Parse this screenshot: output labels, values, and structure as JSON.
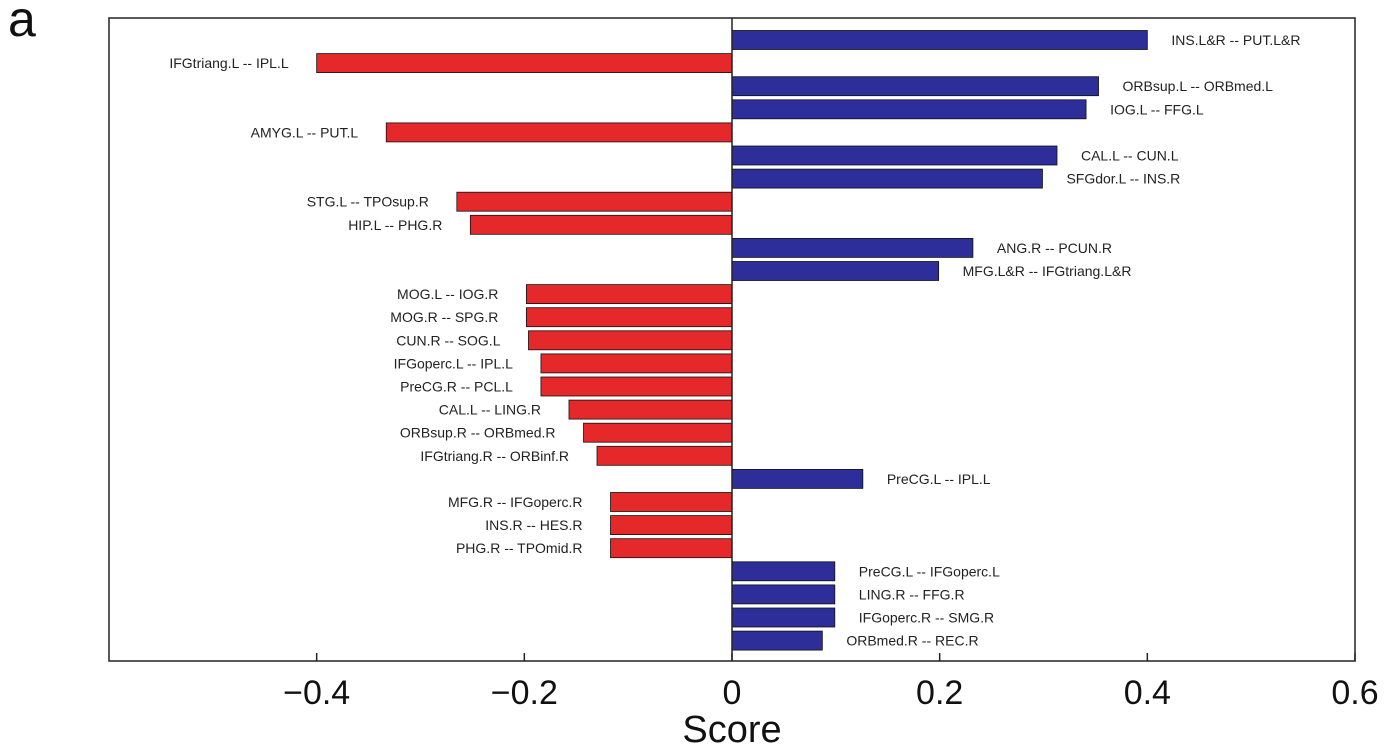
{
  "panel_label": "a",
  "colors": {
    "positive": "#2e2e9a",
    "negative": "#e5282a",
    "axis": "#222222"
  },
  "chart_data": {
    "type": "bar",
    "orientation": "horizontal",
    "xlabel": "Score",
    "xlim": [
      -0.6,
      0.6
    ],
    "xticks": [
      -0.4,
      -0.2,
      0,
      0.2,
      0.4,
      0.6
    ],
    "xtick_labels": [
      "−0.4",
      "−0.2",
      "0",
      "0.2",
      "0.4",
      "0.6"
    ],
    "grid": false,
    "rows": 27,
    "bars": [
      {
        "row": 0,
        "label": "INS.L&R -- PUT.L&R",
        "value": 0.4
      },
      {
        "row": 1,
        "label": "IFGtriang.L -- IPL.L",
        "value": -0.4
      },
      {
        "row": 2,
        "label": "ORBsup.L -- ORBmed.L",
        "value": 0.353
      },
      {
        "row": 3,
        "label": "IOG.L -- FFG.L",
        "value": 0.341
      },
      {
        "row": 4,
        "label": "AMYG.L -- PUT.L",
        "value": -0.333
      },
      {
        "row": 5,
        "label": "CAL.L -- CUN.L",
        "value": 0.313
      },
      {
        "row": 6,
        "label": "SFGdor.L -- INS.R",
        "value": 0.299
      },
      {
        "row": 7,
        "label": "STG.L -- TPOsup.R",
        "value": -0.265
      },
      {
        "row": 8,
        "label": "HIP.L -- PHG.R",
        "value": -0.252
      },
      {
        "row": 9,
        "label": "ANG.R -- PCUN.R",
        "value": 0.232
      },
      {
        "row": 10,
        "label": "MFG.L&R -- IFGtriang.L&R",
        "value": 0.199
      },
      {
        "row": 11,
        "label": "MOG.L -- IOG.R",
        "value": -0.198
      },
      {
        "row": 12,
        "label": "MOG.R -- SPG.R",
        "value": -0.198
      },
      {
        "row": 13,
        "label": "CUN.R -- SOG.L",
        "value": -0.196
      },
      {
        "row": 14,
        "label": "IFGoperc.L -- IPL.L",
        "value": -0.184
      },
      {
        "row": 15,
        "label": "PreCG.R -- PCL.L",
        "value": -0.184
      },
      {
        "row": 16,
        "label": "CAL.L -- LING.R",
        "value": -0.157
      },
      {
        "row": 17,
        "label": "ORBsup.R -- ORBmed.R",
        "value": -0.143
      },
      {
        "row": 18,
        "label": "IFGtriang.R -- ORBinf.R",
        "value": -0.13
      },
      {
        "row": 19,
        "label": "PreCG.L -- IPL.L",
        "value": 0.126
      },
      {
        "row": 20,
        "label": "MFG.R -- IFGoperc.R",
        "value": -0.117
      },
      {
        "row": 21,
        "label": "INS.R -- HES.R",
        "value": -0.117
      },
      {
        "row": 22,
        "label": "PHG.R -- TPOmid.R",
        "value": -0.117
      },
      {
        "row": 23,
        "label": "PreCG.L -- IFGoperc.L",
        "value": 0.099
      },
      {
        "row": 24,
        "label": "LING.R -- FFG.R",
        "value": 0.099
      },
      {
        "row": 25,
        "label": "IFGoperc.R -- SMG.R",
        "value": 0.099
      },
      {
        "row": 26,
        "label": "ORBmed.R -- REC.R",
        "value": 0.087
      }
    ]
  }
}
